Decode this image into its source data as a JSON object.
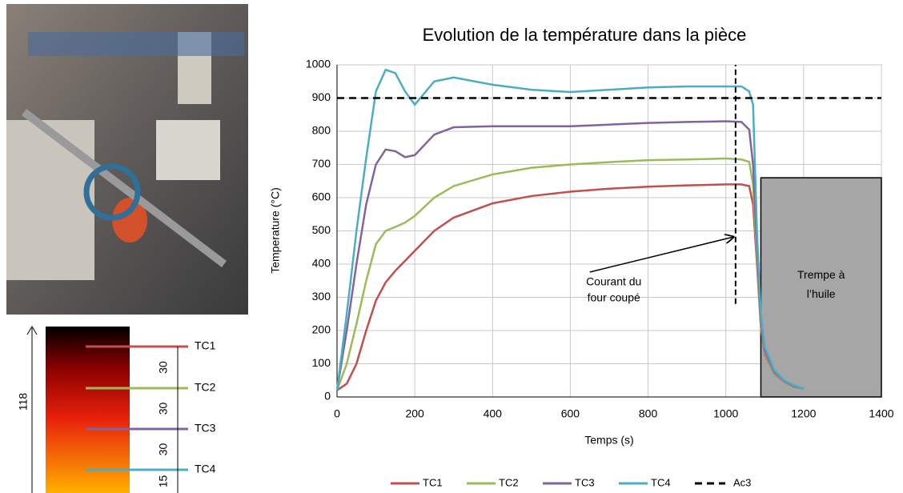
{
  "chart_data": {
    "type": "line",
    "title": "Evolution de la température dans la pièce",
    "x_label": "Temps (s)",
    "y_label": "Temperature (°C)",
    "x": [
      0,
      25,
      50,
      75,
      100,
      125,
      150,
      175,
      200,
      250,
      300,
      400,
      500,
      600,
      700,
      800,
      900,
      1000,
      1040,
      1060,
      1070,
      1080,
      1090,
      1100,
      1125,
      1150,
      1175,
      1200
    ],
    "series": [
      {
        "name": "TC1",
        "color": "#c0504d",
        "values": [
          20,
          40,
          100,
          200,
          290,
          345,
          380,
          410,
          440,
          500,
          540,
          583,
          605,
          618,
          627,
          633,
          637,
          640,
          640,
          635,
          580,
          400,
          210,
          130,
          70,
          45,
          31,
          24
        ]
      },
      {
        "name": "TC2",
        "color": "#9bbb59",
        "values": [
          20,
          100,
          220,
          350,
          460,
          500,
          512,
          525,
          545,
          600,
          635,
          670,
          690,
          700,
          707,
          713,
          715,
          718,
          715,
          708,
          640,
          420,
          220,
          135,
          72,
          46,
          32,
          24
        ]
      },
      {
        "name": "TC3",
        "color": "#8064a2",
        "values": [
          20,
          200,
          400,
          580,
          700,
          745,
          740,
          722,
          728,
          790,
          812,
          815,
          815,
          815,
          820,
          825,
          828,
          830,
          828,
          805,
          700,
          450,
          230,
          140,
          75,
          48,
          33,
          25
        ]
      },
      {
        "name": "TC4",
        "color": "#4bacc6",
        "values": [
          20,
          250,
          500,
          720,
          920,
          985,
          975,
          920,
          880,
          950,
          962,
          940,
          925,
          918,
          925,
          932,
          935,
          935,
          935,
          920,
          880,
          500,
          250,
          150,
          80,
          50,
          35,
          25
        ]
      }
    ],
    "reference_lines": [
      {
        "name": "Ac3",
        "value": 900,
        "color": "#000000"
      }
    ],
    "cutoff": {
      "x": 1025,
      "ylim": [
        280,
        1000
      ]
    },
    "annotation": {
      "lines": [
        "Courant du",
        "four coupé"
      ],
      "xytext": [
        650,
        376
      ],
      "xy": [
        1020,
        482
      ]
    },
    "shaded_region": {
      "xlim": [
        1090,
        1400
      ],
      "ylim": [
        0,
        660
      ],
      "color": "#a6a6a6",
      "lines": [
        "Trempe à",
        "l’huile"
      ]
    },
    "xlim": [
      0,
      1400
    ],
    "ylim": [
      0,
      1000
    ],
    "xticks": [
      0,
      200,
      400,
      600,
      800,
      1000,
      1200,
      1400
    ],
    "yticks": [
      0,
      100,
      200,
      300,
      400,
      500,
      600,
      700,
      800,
      900,
      1000
    ],
    "grid": true
  },
  "diagram": {
    "labels": [
      "TC1",
      "TC2",
      "TC3",
      "TC4"
    ],
    "total": "118",
    "spacings": [
      "30",
      "30",
      "30",
      "15"
    ]
  }
}
